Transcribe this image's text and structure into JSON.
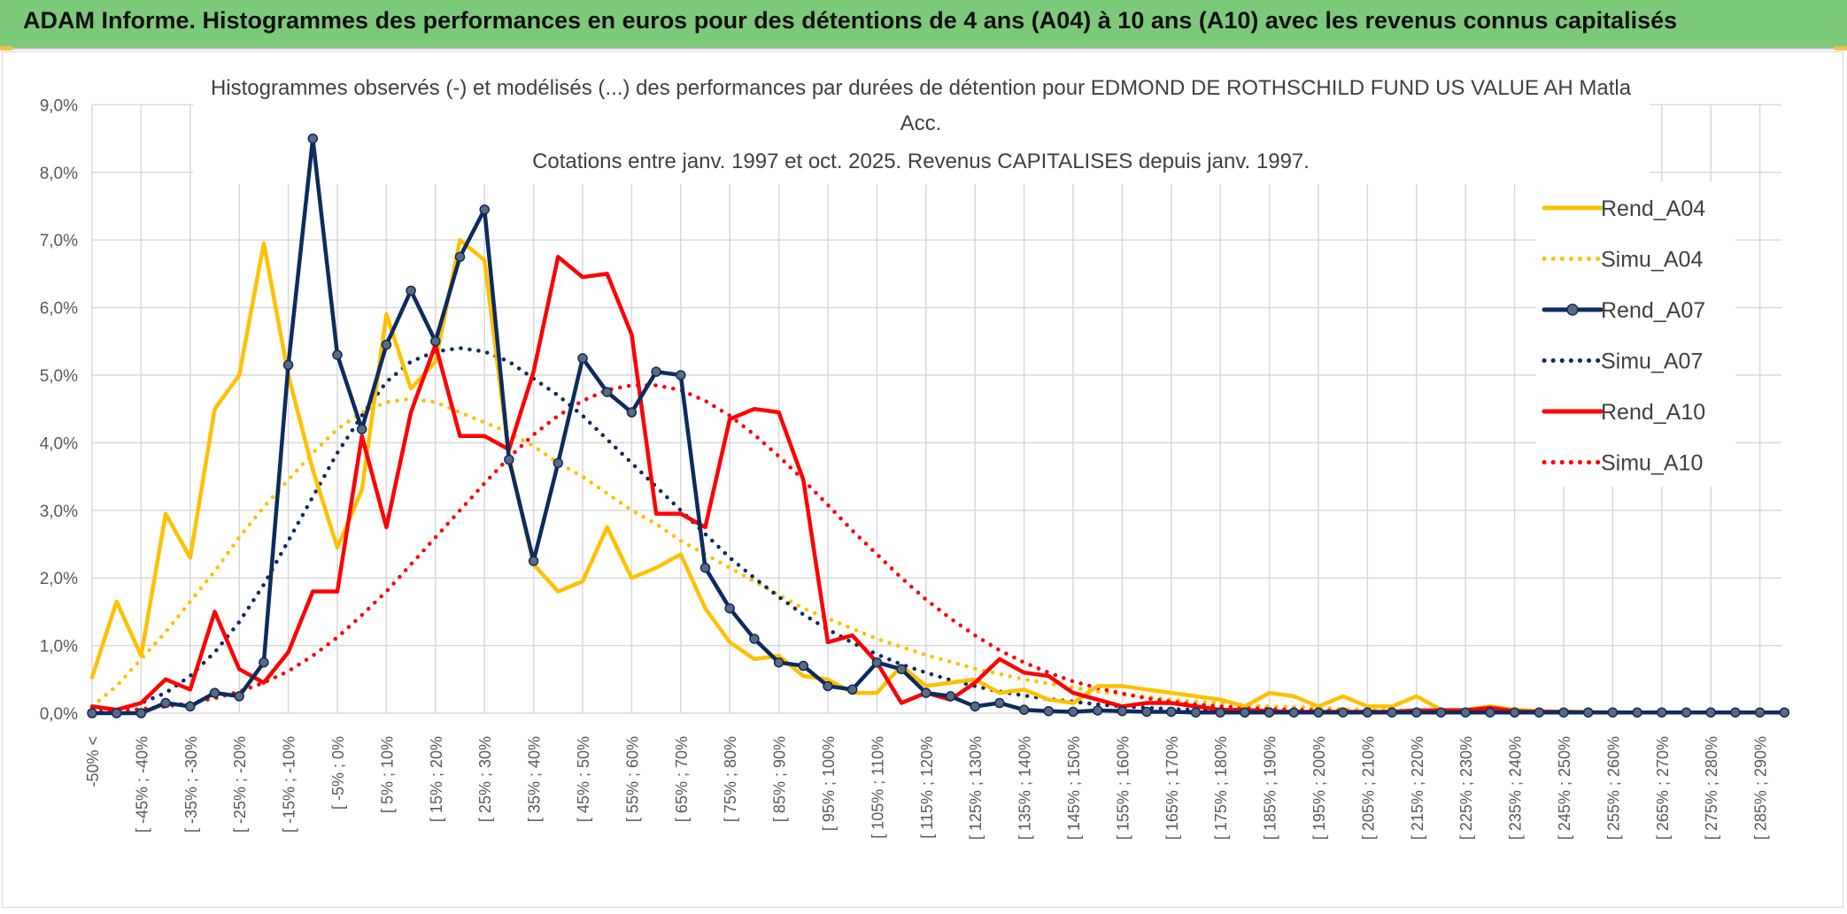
{
  "header": {
    "title": "ADAM Informe. Histogrammes des performances en euros pour des détentions de 4 ans (A04) à 10 ans (A10) avec les revenus connus capitalisés"
  },
  "colors": {
    "header_bg": "#7dc97a",
    "A04": "#ffc000",
    "A07": "#0d2b5e",
    "A10": "#ff0000",
    "grid": "#d9d9d9"
  },
  "chart_data": {
    "type": "line",
    "title_lines": [
      "Histogrammes observés (-) et modélisés (...) des performances par durées de détention pour EDMOND DE ROTHSCHILD FUND US VALUE AH Matla",
      "Acc.",
      "Cotations entre janv. 1997 et oct. 2025. Revenus CAPITALISES depuis janv. 1997."
    ],
    "xlabel": "",
    "ylabel": "",
    "ylim": [
      0,
      0.09
    ],
    "y_ticks": [
      "0,0%",
      "1,0%",
      "2,0%",
      "3,0%",
      "4,0%",
      "5,0%",
      "6,0%",
      "7,0%",
      "8,0%",
      "9,0%"
    ],
    "grid": true,
    "legend_position": "right",
    "categories": [
      "-50% <",
      "[ -50% ; -45%",
      "[ -45% ; -40%",
      "[ -40% ; -35%",
      "[ -35% ; -30%",
      "[ -30% ; -25%",
      "[ -25% ; -20%",
      "[ -20% ; -15%",
      "[ -15% ; -10%",
      "[ -10% ; -5%",
      "[ -5% ; 0%",
      "[ 0% ; 5%",
      "[ 5% ; 10%",
      "[ 10% ; 15%",
      "[ 15% ; 20%",
      "[ 20% ; 25%",
      "[ 25% ; 30%",
      "[ 30% ; 35%",
      "[ 35% ; 40%",
      "[ 40% ; 45%",
      "[ 45% ; 50%",
      "[ 50% ; 55%",
      "[ 55% ; 60%",
      "[ 60% ; 65%",
      "[ 65% ; 70%",
      "[ 70% ; 75%",
      "[ 75% ; 80%",
      "[ 80% ; 85%",
      "[ 85% ; 90%",
      "[ 90% ; 95%",
      "[ 95% ; 100%",
      "[ 100% ; 105%",
      "[ 105% ; 110%",
      "[ 110% ; 115%",
      "[ 115% ; 120%",
      "[ 120% ; 125%",
      "[ 125% ; 130%",
      "[ 130% ; 135%",
      "[ 135% ; 140%",
      "[ 140% ; 145%",
      "[ 145% ; 150%",
      "[ 150% ; 155%",
      "[ 155% ; 160%",
      "[ 160% ; 165%",
      "[ 165% ; 170%",
      "[ 170% ; 175%",
      "[ 175% ; 180%",
      "[ 180% ; 185%",
      "[ 185% ; 190%",
      "[ 190% ; 195%",
      "[ 195% ; 200%",
      "[ 200% ; 205%",
      "[ 205% ; 210%",
      "[ 210% ; 215%",
      "[ 215% ; 220%",
      "[ 220% ; 225%",
      "[ 225% ; 230%",
      "[ 230% ; 235%",
      "[ 235% ; 240%",
      "[ 240% ; 245%",
      "[ 245% ; 250%",
      "[ 250% ; 255%",
      "[ 255% ; 260%",
      "[ 260% ; 265%",
      "[ 265% ; 270%",
      "[ 270% ; 275%",
      "[ 275% ; 280%",
      "[ 280% ; 285%",
      "[ 285% ; 290%",
      "[ 290% ; 295%"
    ],
    "visible_x_labels": [
      "-50% <",
      "[ -45% ; -40%",
      "[ -35% ; -30%",
      "[ -25% ; -20%",
      "[ -15% ; -10%",
      "[ -5% ; 0%",
      "[ 5% ; 10%",
      "[ 15% ; 20%",
      "[ 25% ; 30%",
      "[ 35% ; 40%",
      "[ 45% ; 50%",
      "[ 55% ; 60%",
      "[ 65% ; 70%",
      "[ 75% ; 80%",
      "[ 85% ; 90%",
      "[ 95% ; 100%",
      "[ 105% ; 110%",
      "[ 115% ; 120%",
      "[ 125% ; 130%",
      "[ 135% ; 140%",
      "[ 145% ; 150%",
      "[ 155% ; 160%",
      "[ 165% ; 170%",
      "[ 175% ; 180%",
      "[ 185% ; 190%",
      "[ 195% ; 200%",
      "[ 205% ; 210%",
      "[ 215% ; 220%",
      "[ 225% ; 230%",
      "[ 235% ; 240%",
      "[ 245% ; 250%",
      "[ 255% ; 260%",
      "[ 265% ; 270%",
      "[ 275% ; 280%",
      "[ 285% ; 290%"
    ],
    "series": [
      {
        "name": "Rend_A04",
        "style": "solid",
        "markers": false,
        "color": "#ffc000",
        "values": [
          0.0053,
          0.0165,
          0.0085,
          0.0295,
          0.023,
          0.045,
          0.05,
          0.0695,
          0.05,
          0.036,
          0.0245,
          0.033,
          0.059,
          0.048,
          0.052,
          0.07,
          0.067,
          0.038,
          0.022,
          0.018,
          0.0195,
          0.0275,
          0.02,
          0.0215,
          0.0235,
          0.0155,
          0.0105,
          0.008,
          0.0085,
          0.0055,
          0.005,
          0.003,
          0.003,
          0.007,
          0.004,
          0.0045,
          0.005,
          0.003,
          0.0035,
          0.002,
          0.0015,
          0.004,
          0.004,
          0.0035,
          0.003,
          0.0025,
          0.002,
          0.001,
          0.003,
          0.0025,
          0.001,
          0.0025,
          0.001,
          0.001,
          0.0025,
          0.0005,
          0.0005,
          0.001,
          0.0005,
          0.0003,
          0.0002,
          0.0002,
          0.0001,
          0.0001,
          0.0001,
          0.0001,
          0.0001,
          0.0001,
          0.0001,
          0.0001
        ]
      },
      {
        "name": "Simu_A04",
        "style": "dotted",
        "markers": false,
        "color": "#ffc000",
        "values": [
          0.001,
          0.004,
          0.008,
          0.012,
          0.0165,
          0.021,
          0.026,
          0.0305,
          0.0345,
          0.0385,
          0.042,
          0.0445,
          0.046,
          0.0465,
          0.046,
          0.0445,
          0.043,
          0.0415,
          0.0395,
          0.037,
          0.035,
          0.0325,
          0.03,
          0.028,
          0.0255,
          0.0235,
          0.0215,
          0.0195,
          0.0175,
          0.0155,
          0.014,
          0.0125,
          0.011,
          0.0098,
          0.0086,
          0.0076,
          0.0066,
          0.0058,
          0.005,
          0.0044,
          0.0038,
          0.0032,
          0.0028,
          0.0024,
          0.002,
          0.0017,
          0.0015,
          0.0012,
          0.001,
          0.0009,
          0.0008,
          0.0006,
          0.0005,
          0.0004,
          0.0004,
          0.0003,
          0.0003,
          0.0002,
          0.0002,
          0.0002,
          0.0001,
          0.0001,
          0.0001,
          0.0001,
          0.0001,
          0.0001,
          0.0001,
          0.0001,
          0.0001,
          0.0001
        ]
      },
      {
        "name": "Rend_A07",
        "style": "solid",
        "markers": true,
        "color": "#0d2b5e",
        "values": [
          0.0,
          0.0,
          0.0,
          0.0015,
          0.001,
          0.003,
          0.0025,
          0.0075,
          0.0515,
          0.085,
          0.053,
          0.042,
          0.0545,
          0.0625,
          0.055,
          0.0675,
          0.0745,
          0.0375,
          0.0225,
          0.037,
          0.0525,
          0.0475,
          0.0445,
          0.0505,
          0.05,
          0.0215,
          0.0155,
          0.011,
          0.0075,
          0.007,
          0.004,
          0.0035,
          0.0075,
          0.0065,
          0.003,
          0.0025,
          0.001,
          0.0015,
          0.0005,
          0.0003,
          0.0002,
          0.0004,
          0.0003,
          0.0002,
          0.0002,
          0.0001,
          0.0001,
          0.0001,
          0.0001,
          0.0001,
          0.0001,
          0.0001,
          0.0001,
          0.0001,
          0.0001,
          0.0001,
          0.0001,
          0.0001,
          0.0001,
          0.0001,
          0.0001,
          0.0001,
          0.0001,
          0.0001,
          0.0001,
          0.0001,
          0.0001,
          0.0001,
          0.0001,
          0.0001
        ]
      },
      {
        "name": "Simu_A07",
        "style": "dotted",
        "markers": false,
        "color": "#0d2b5e",
        "values": [
          0.0001,
          0.0005,
          0.0015,
          0.003,
          0.0055,
          0.009,
          0.0135,
          0.019,
          0.0255,
          0.032,
          0.0385,
          0.044,
          0.049,
          0.052,
          0.0535,
          0.054,
          0.0535,
          0.052,
          0.0495,
          0.047,
          0.044,
          0.0405,
          0.037,
          0.0335,
          0.03,
          0.0265,
          0.023,
          0.02,
          0.0172,
          0.0146,
          0.0124,
          0.0104,
          0.0087,
          0.0072,
          0.006,
          0.0049,
          0.004,
          0.0032,
          0.0026,
          0.0021,
          0.0017,
          0.0013,
          0.001,
          0.0008,
          0.0006,
          0.0005,
          0.0004,
          0.0003,
          0.0002,
          0.0002,
          0.0001,
          0.0001,
          0.0001,
          0.0001,
          0.0001,
          0.0001,
          0.0001,
          0.0001,
          0.0001,
          0.0001,
          0.0001,
          0.0001,
          0.0001,
          0.0001,
          0.0001,
          0.0001,
          0.0001,
          0.0001,
          0.0001,
          0.0001
        ]
      },
      {
        "name": "Rend_A10",
        "style": "solid",
        "markers": false,
        "color": "#ff0000",
        "values": [
          0.001,
          0.0005,
          0.0015,
          0.005,
          0.0035,
          0.015,
          0.0065,
          0.0045,
          0.009,
          0.018,
          0.018,
          0.041,
          0.0275,
          0.0445,
          0.0545,
          0.041,
          0.041,
          0.039,
          0.0505,
          0.0675,
          0.0645,
          0.065,
          0.056,
          0.0295,
          0.0295,
          0.0275,
          0.0435,
          0.045,
          0.0445,
          0.0345,
          0.0105,
          0.0115,
          0.0075,
          0.0015,
          0.003,
          0.002,
          0.0045,
          0.008,
          0.006,
          0.0055,
          0.003,
          0.002,
          0.001,
          0.0015,
          0.0015,
          0.001,
          0.0005,
          0.0005,
          0.0003,
          0.0002,
          0.0002,
          0.0002,
          0.0002,
          0.0002,
          0.0004,
          0.0004,
          0.0004,
          0.0008,
          0.0003,
          0.0002,
          0.0002,
          0.0001,
          0.0001,
          0.0001,
          0.0001,
          0.0001,
          0.0001,
          0.0001,
          0.0001,
          0.0001
        ]
      },
      {
        "name": "Simu_A10",
        "style": "dotted",
        "markers": false,
        "color": "#ff0000",
        "values": [
          0.0001,
          0.0003,
          0.0006,
          0.001,
          0.0015,
          0.0022,
          0.0032,
          0.0045,
          0.0062,
          0.0085,
          0.0112,
          0.0145,
          0.018,
          0.022,
          0.026,
          0.03,
          0.034,
          0.0378,
          0.0412,
          0.044,
          0.0462,
          0.0478,
          0.0485,
          0.0485,
          0.0478,
          0.0462,
          0.044,
          0.0412,
          0.038,
          0.0345,
          0.0308,
          0.027,
          0.0235,
          0.02,
          0.0168,
          0.014,
          0.0115,
          0.0093,
          0.0075,
          0.006,
          0.0047,
          0.0037,
          0.0029,
          0.0022,
          0.0017,
          0.0013,
          0.001,
          0.0008,
          0.0006,
          0.0005,
          0.0004,
          0.0003,
          0.0002,
          0.0002,
          0.0001,
          0.0001,
          0.0001,
          0.0001,
          0.0001,
          0.0001,
          0.0001,
          0.0001,
          0.0001,
          0.0001,
          0.0001,
          0.0001,
          0.0001,
          0.0001,
          0.0001,
          0.0001
        ]
      }
    ]
  }
}
